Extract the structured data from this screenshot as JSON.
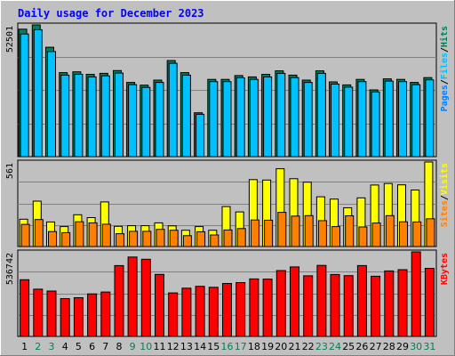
{
  "title": "Daily usage for December 2023",
  "colors": {
    "pages": "#0080ff",
    "files": "#00c0ff",
    "hits": "#00805c",
    "visits": "#ffff00",
    "sites": "#ff8000",
    "kbytes": "#ff0000",
    "title": "#0000ff",
    "weekend": "#00805c"
  },
  "chart_data": {
    "type": "bar",
    "days": [
      "1",
      "2",
      "3",
      "4",
      "5",
      "6",
      "7",
      "8",
      "9",
      "10",
      "11",
      "12",
      "13",
      "14",
      "15",
      "16",
      "17",
      "18",
      "19",
      "20",
      "21",
      "22",
      "23",
      "24",
      "25",
      "26",
      "27",
      "28",
      "29",
      "30",
      "31"
    ],
    "weekend_days": [
      "2",
      "3",
      "9",
      "10",
      "16",
      "17",
      "23",
      "24",
      "30",
      "31"
    ],
    "panels": [
      {
        "name": "pages-files-hits",
        "max_label": "52501",
        "ymax": 52501,
        "legend": [
          "Pages",
          "/",
          "Files",
          "/",
          "Hits"
        ],
        "series": [
          {
            "name": "Hits",
            "values": [
              50800,
              52500,
              43600,
              33500,
              33800,
              32800,
              33200,
              34300,
              29600,
              28500,
              30500,
              38300,
              33500,
              17500,
              30800,
              30800,
              32300,
              31800,
              32800,
              34200,
              32500,
              30500,
              34200,
              29800,
              28600,
              30800,
              26600,
              31000,
              30800,
              29600,
              31500
            ]
          },
          {
            "name": "Files",
            "values": [
              48900,
              50600,
              41900,
              32500,
              32800,
              31800,
              32200,
              33300,
              28700,
              27600,
              29600,
              37200,
              32500,
              16900,
              29900,
              29900,
              31400,
              30800,
              31800,
              33200,
              31500,
              29600,
              33200,
              28900,
              27700,
              29900,
              25800,
              30100,
              29900,
              28700,
              30600
            ]
          },
          {
            "name": "Pages",
            "values": [
              0,
              0,
              0,
              0,
              0,
              0,
              0,
              0,
              0,
              0,
              0,
              0,
              0,
              0,
              0,
              0,
              0,
              0,
              0,
              0,
              0,
              0,
              0,
              0,
              0,
              0,
              0,
              0,
              0,
              0,
              0
            ]
          }
        ]
      },
      {
        "name": "visits-sites",
        "max_label": "561",
        "ymax": 561,
        "legend": [
          "Sites",
          "/",
          "Visits"
        ],
        "series": [
          {
            "name": "Visits",
            "values": [
              181,
              301,
              163,
              132,
              211,
              192,
              296,
              134,
              138,
              138,
              157,
              137,
              108,
              132,
              108,
              265,
              230,
              444,
              441,
              516,
              450,
              427,
              330,
              315,
              257,
              323,
              408,
              418,
              409,
              375,
              561
            ]
          },
          {
            "name": "Sites",
            "values": [
              147,
              179,
              99,
              92,
              164,
              157,
              148,
              85,
              101,
              101,
              114,
              108,
              72,
              98,
              77,
              110,
              119,
              176,
              175,
              227,
              202,
              205,
              172,
              132,
              204,
              130,
              156,
              205,
              164,
              163,
              184
            ]
          }
        ]
      },
      {
        "name": "kbytes",
        "max_label": "536742",
        "ymax": 536742,
        "legend": [
          "KBytes"
        ],
        "series": [
          {
            "name": "KBytes",
            "values": [
              360000,
              300000,
              288000,
              240000,
              246000,
              270000,
              282000,
              450000,
              504000,
              490000,
              394000,
              276000,
              306000,
              318000,
              312000,
              336000,
              342000,
              365000,
              364000,
              418000,
              441000,
              385000,
              451000,
              393000,
              386000,
              450000,
              382000,
              416000,
              424000,
              536742,
              432000
            ]
          }
        ]
      }
    ]
  }
}
